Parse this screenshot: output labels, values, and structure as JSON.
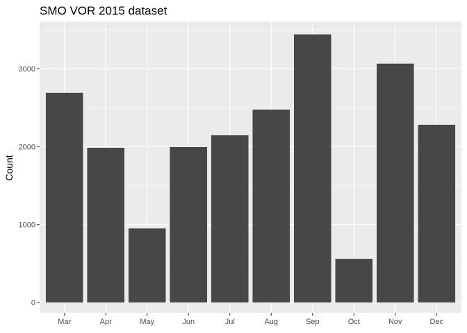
{
  "chart_data": {
    "type": "bar",
    "title": "SMO VOR 2015 dataset",
    "xlabel": "",
    "ylabel": "Count",
    "categories": [
      "Mar",
      "Apr",
      "May",
      "Jun",
      "Jul",
      "Aug",
      "Sep",
      "Oct",
      "Nov",
      "Dec"
    ],
    "values": [
      2690,
      1985,
      950,
      1995,
      2145,
      2475,
      3440,
      560,
      3065,
      2280
    ],
    "ylim": [
      0,
      3600
    ],
    "yticks": [
      0,
      1000,
      2000,
      3000
    ],
    "grid": true,
    "colors": {
      "bar": "#474747",
      "panel": "#ebebeb",
      "gridline": "#ffffff"
    }
  }
}
